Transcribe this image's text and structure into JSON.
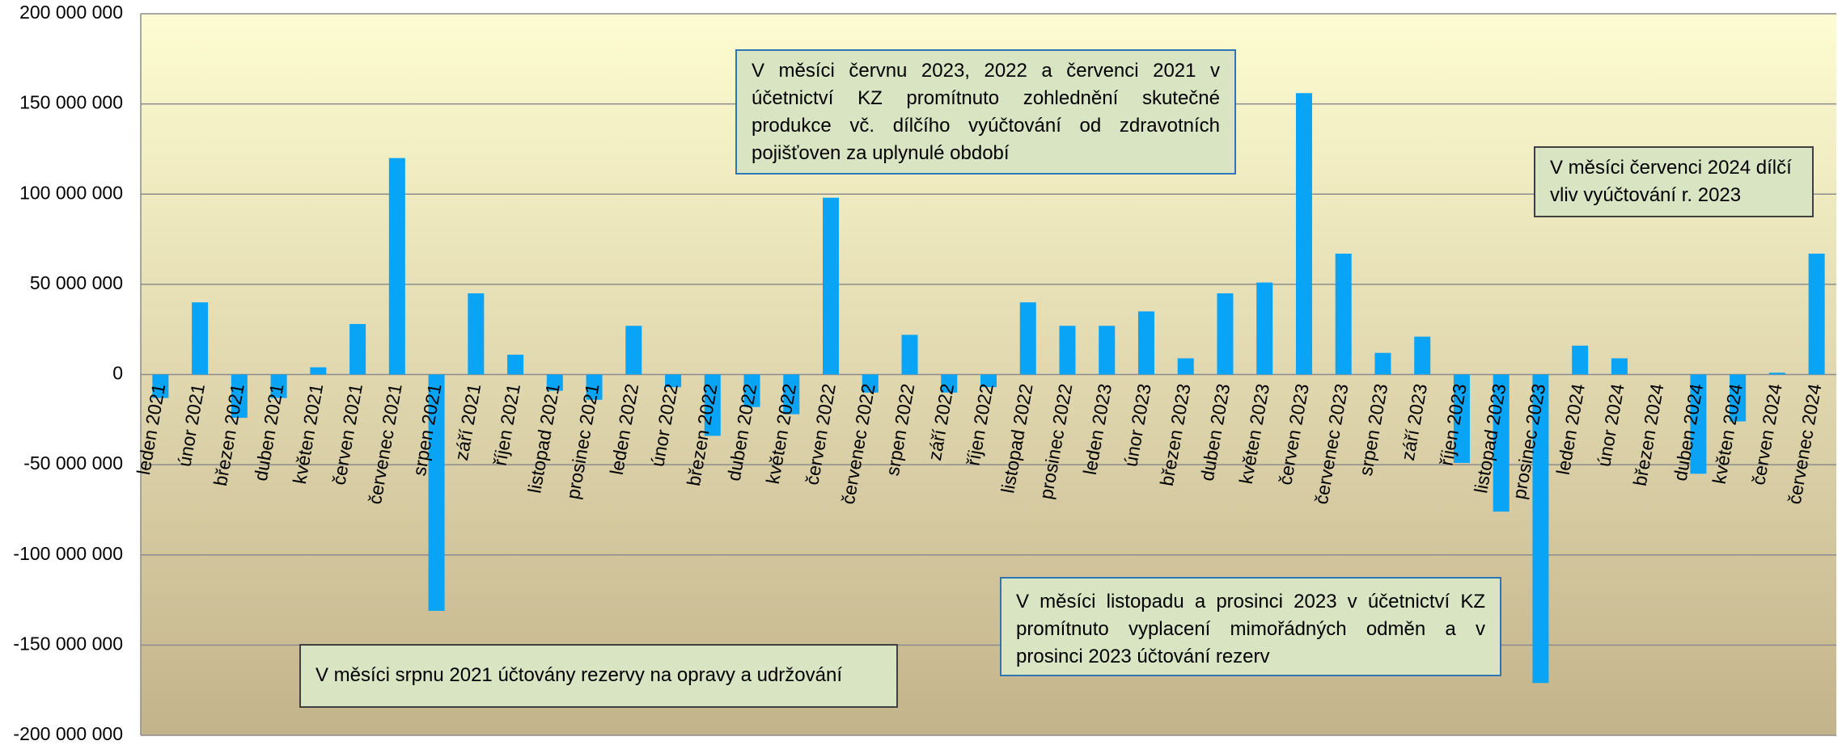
{
  "chart_data": {
    "type": "bar",
    "categories": [
      "leden 2021",
      "únor 2021",
      "březen 2021",
      "duben 2021",
      "květen 2021",
      "červen 2021",
      "červenec 2021",
      "srpen 2021",
      "září 2021",
      "říjen 2021",
      "listopad 2021",
      "prosinec 2021",
      "leden 2022",
      "únor 2022",
      "březen 2022",
      "duben 2022",
      "květen 2022",
      "červen 2022",
      "červenec 2022",
      "srpen 2022",
      "září 2022",
      "říjen 2022",
      "listopad 2022",
      "prosinec 2022",
      "leden 2023",
      "únor 2023",
      "březen 2023",
      "duben 2023",
      "květen 2023",
      "červen 2023",
      "červenec 2023",
      "srpen 2023",
      "září 2023",
      "říjen 2023",
      "listopad 2023",
      "prosinec 2023",
      "leden 2024",
      "únor 2024",
      "březen 2024",
      "duben 2024",
      "květen 2024",
      "červen 2024",
      "červenec 2024"
    ],
    "values": [
      -13000000,
      40000000,
      -24000000,
      -13000000,
      4000000,
      28000000,
      120000000,
      -131000000,
      45000000,
      11000000,
      -9000000,
      -14000000,
      27000000,
      -7000000,
      -34000000,
      -18000000,
      -22000000,
      98000000,
      -10000000,
      22000000,
      -10000000,
      -7000000,
      40000000,
      27000000,
      27000000,
      35000000,
      9000000,
      45000000,
      51000000,
      156000000,
      67000000,
      12000000,
      21000000,
      -49000000,
      -76000000,
      -171000000,
      16000000,
      9000000,
      0,
      -55000000,
      -26000000,
      1000000,
      67000000
    ],
    "color": "#0aa4f6",
    "ylim": [
      -200000000,
      200000000
    ],
    "yticks": [
      {
        "value": -200000000,
        "label": "-200 000 000"
      },
      {
        "value": -150000000,
        "label": "-150 000 000"
      },
      {
        "value": -100000000,
        "label": "-100 000 000"
      },
      {
        "value": -50000000,
        "label": "-50 000 000"
      },
      0,
      {
        "value": 50000000,
        "label": "50 000 000"
      },
      {
        "value": 100000000,
        "label": "100 000 000"
      },
      {
        "value": 150000000,
        "label": "150 000 000"
      },
      {
        "value": 200000000,
        "label": "200 000 000"
      }
    ],
    "grid": true,
    "annotations": [
      "V měsíci červnu 2023, 2022 a červenci 2021 v účetnictví KZ promítnuto zohlednění skutečné produkce vč. dílčího vyúčtování od zdravotních pojišťoven za uplynulé období",
      "V měsíci červenci 2024 dílčí vliv vyúčtování r. 2023",
      "V měsíci listopadu a prosinci 2023 v účetnictví KZ promítnuto vyplacení mimořádných odměn a v prosinci 2023 účtování rezerv",
      "V měsíci srpnu 2021 účtovány rezervy na opravy a udržování"
    ]
  }
}
